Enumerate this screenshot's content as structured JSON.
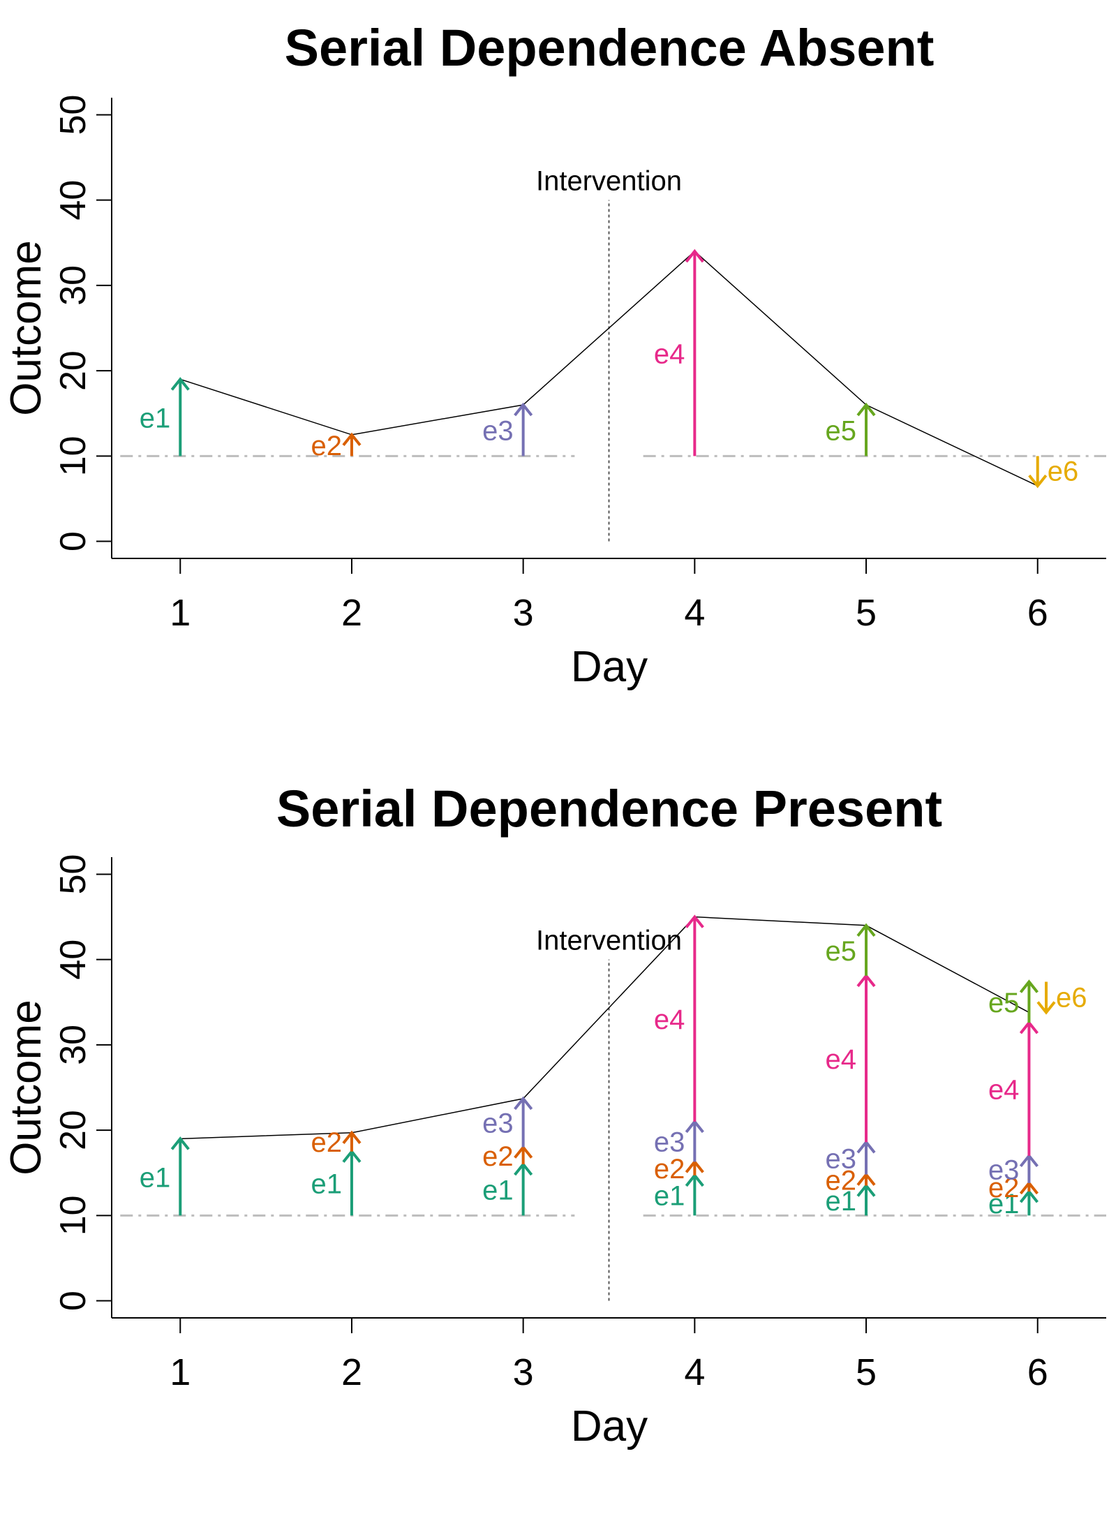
{
  "colors": {
    "e1": "#1b9e77",
    "e2": "#d95f02",
    "e3": "#7570b3",
    "e4": "#e7298a",
    "e5": "#66a61e",
    "e6": "#e6ab02",
    "baseline": "#bdbdbd",
    "line": "#000000",
    "intervention": "#555555"
  },
  "chart_data": [
    {
      "type": "line",
      "title": "Serial Dependence Absent",
      "xlabel": "Day",
      "ylabel": "Outcome",
      "x_ticks": [
        1,
        2,
        3,
        4,
        5,
        6
      ],
      "y_ticks": [
        0,
        10,
        20,
        30,
        40,
        50
      ],
      "xlim": [
        0.6,
        6.4
      ],
      "ylim": [
        -2,
        52
      ],
      "baseline": 10,
      "intervention": {
        "x": 3.5,
        "label": "Intervention",
        "y_top": 40
      },
      "series": [
        {
          "x": [
            1,
            2,
            3,
            4,
            5,
            6
          ],
          "values": [
            19,
            12.5,
            16,
            34,
            16,
            6.5
          ]
        }
      ],
      "arrows": [
        {
          "x": 1,
          "from": 10,
          "to": 19,
          "label": "e1",
          "color_key": "e1",
          "label_side": "left"
        },
        {
          "x": 2,
          "from": 10,
          "to": 12.5,
          "label": "e2",
          "color_key": "e2",
          "label_side": "left"
        },
        {
          "x": 3,
          "from": 10,
          "to": 16,
          "label": "e3",
          "color_key": "e3",
          "label_side": "left"
        },
        {
          "x": 4,
          "from": 10,
          "to": 34,
          "label": "e4",
          "color_key": "e4",
          "label_side": "left"
        },
        {
          "x": 5,
          "from": 10,
          "to": 16,
          "label": "e5",
          "color_key": "e5",
          "label_side": "left"
        },
        {
          "x": 6,
          "from": 10,
          "to": 6.5,
          "label": "e6",
          "color_key": "e6",
          "label_side": "right"
        }
      ]
    },
    {
      "type": "line",
      "title": "Serial Dependence Present",
      "xlabel": "Day",
      "ylabel": "Outcome",
      "x_ticks": [
        1,
        2,
        3,
        4,
        5,
        6
      ],
      "y_ticks": [
        0,
        10,
        20,
        30,
        40,
        50
      ],
      "xlim": [
        0.6,
        6.4
      ],
      "ylim": [
        -2,
        52
      ],
      "baseline": 10,
      "intervention": {
        "x": 3.5,
        "label": "Intervention",
        "y_top": 40
      },
      "series": [
        {
          "x": [
            1,
            2,
            3,
            4,
            5,
            5.95
          ],
          "values": [
            19,
            19.7,
            23.7,
            45,
            44,
            33.8
          ]
        }
      ],
      "arrows": [
        {
          "x": 1,
          "from": 10,
          "to": 19,
          "label": "e1",
          "color_key": "e1",
          "label_side": "left"
        },
        {
          "x": 2,
          "from": 10,
          "to": 17.5,
          "label": "e1",
          "color_key": "e1",
          "label_side": "left"
        },
        {
          "x": 2,
          "from": 17.5,
          "to": 19.7,
          "label": "e2",
          "color_key": "e2",
          "label_side": "left"
        },
        {
          "x": 3,
          "from": 10,
          "to": 16,
          "label": "e1",
          "color_key": "e1",
          "label_side": "left"
        },
        {
          "x": 3,
          "from": 16,
          "to": 18,
          "label": "e2",
          "color_key": "e2",
          "label_side": "left"
        },
        {
          "x": 3,
          "from": 18,
          "to": 23.7,
          "label": "e3",
          "color_key": "e3",
          "label_side": "left"
        },
        {
          "x": 4,
          "from": 10,
          "to": 14.7,
          "label": "e1",
          "color_key": "e1",
          "label_side": "left"
        },
        {
          "x": 4,
          "from": 14.7,
          "to": 16.3,
          "label": "e2",
          "color_key": "e2",
          "label_side": "left"
        },
        {
          "x": 4,
          "from": 16.3,
          "to": 21,
          "label": "e3",
          "color_key": "e3",
          "label_side": "left"
        },
        {
          "x": 4,
          "from": 21,
          "to": 45,
          "label": "e4",
          "color_key": "e4",
          "label_side": "left"
        },
        {
          "x": 5,
          "from": 10,
          "to": 13.5,
          "label": "e1",
          "color_key": "e1",
          "label_side": "left"
        },
        {
          "x": 5,
          "from": 13.5,
          "to": 14.8,
          "label": "e2",
          "color_key": "e2",
          "label_side": "left"
        },
        {
          "x": 5,
          "from": 14.8,
          "to": 18.6,
          "label": "e3",
          "color_key": "e3",
          "label_side": "left"
        },
        {
          "x": 5,
          "from": 18.6,
          "to": 38.1,
          "label": "e4",
          "color_key": "e4",
          "label_side": "left"
        },
        {
          "x": 5,
          "from": 38.1,
          "to": 44,
          "label": "e5",
          "color_key": "e5",
          "label_side": "left"
        },
        {
          "x": 5.95,
          "from": 10,
          "to": 12.8,
          "label": "e1",
          "color_key": "e1",
          "label_side": "left"
        },
        {
          "x": 5.95,
          "from": 12.8,
          "to": 13.8,
          "label": "e2",
          "color_key": "e2",
          "label_side": "left"
        },
        {
          "x": 5.95,
          "from": 13.8,
          "to": 17,
          "label": "e3",
          "color_key": "e3",
          "label_side": "left"
        },
        {
          "x": 5.95,
          "from": 17,
          "to": 32.6,
          "label": "e4",
          "color_key": "e4",
          "label_side": "left"
        },
        {
          "x": 5.95,
          "from": 32.6,
          "to": 37.4,
          "label": "e5",
          "color_key": "e5",
          "label_side": "left"
        },
        {
          "x": 6.05,
          "from": 37.4,
          "to": 33.8,
          "label": "e6",
          "color_key": "e6",
          "label_side": "right"
        }
      ]
    }
  ]
}
